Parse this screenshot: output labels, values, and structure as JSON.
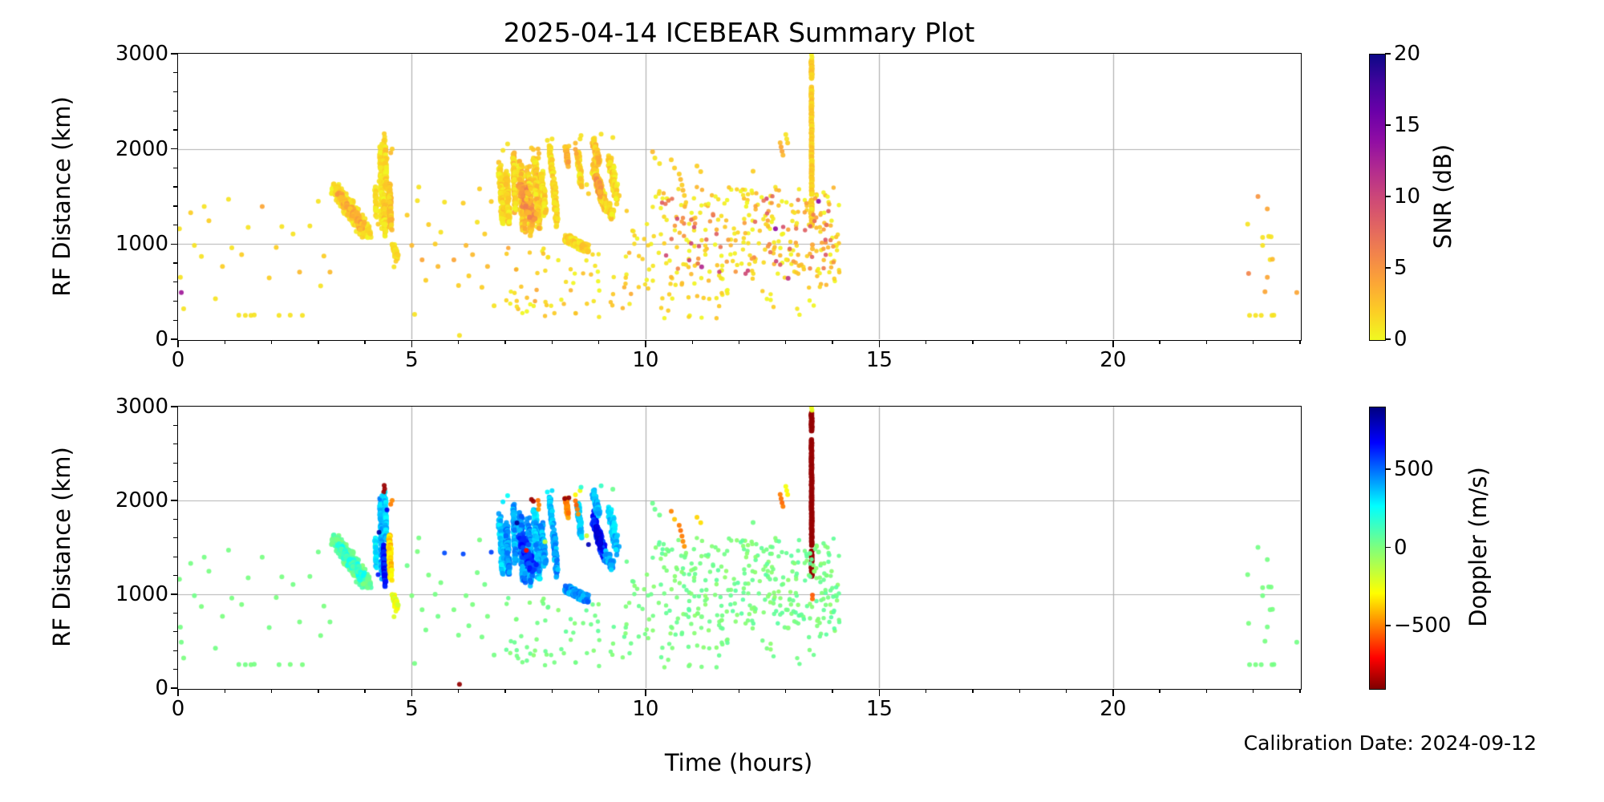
{
  "title": "2025-04-14 ICEBEAR Summary Plot",
  "xlabel": "Time (hours)",
  "ylabel": "RF Distance (km)",
  "calibration_note": "Calibration Date: 2024-09-12",
  "colors": {
    "grid": "#b0b0b0",
    "spine": "#000000",
    "background": "#ffffff"
  },
  "axes": {
    "xlim": [
      0,
      24
    ],
    "ylim": [
      0,
      3000
    ],
    "xticks": [
      0,
      5,
      10,
      15,
      20
    ],
    "xtick_labels": [
      "0",
      "5",
      "10",
      "15",
      "20"
    ],
    "xminor_step": 1,
    "yticks": [
      0,
      1000,
      2000,
      3000
    ],
    "ytick_labels": [
      "0",
      "1000",
      "2000",
      "3000"
    ],
    "yminor_step": 200,
    "grid_x": [
      5,
      10,
      15,
      20
    ],
    "grid_y": [
      1000,
      2000
    ]
  },
  "panels": [
    {
      "id": "snr",
      "colorbar_label": "SNR (dB)",
      "vmin": 0,
      "vmax": 20,
      "cbar_ticks": [
        0,
        5,
        10,
        15,
        20
      ],
      "cbar_tick_labels": [
        "0",
        "5",
        "10",
        "15",
        "20"
      ],
      "cmap": "plasma_r"
    },
    {
      "id": "doppler",
      "colorbar_label": "Doppler (m/s)",
      "vmin": -900,
      "vmax": 900,
      "cbar_ticks": [
        -500,
        0,
        500
      ],
      "cbar_tick_labels": [
        "−500",
        "0",
        "500"
      ],
      "cmap": "jet_r"
    }
  ],
  "chart_data": {
    "type": "scatter",
    "x_units": "hours",
    "y_units": "km",
    "point_format": [
      "time_hours",
      "rf_distance_km",
      "snr_db",
      "doppler_ms"
    ],
    "points": [
      [
        0.03,
        1160,
        1,
        15
      ],
      [
        0.07,
        490,
        13,
        25
      ],
      [
        0.05,
        650,
        1,
        20
      ],
      [
        0.12,
        320,
        1,
        10
      ],
      [
        0.27,
        1330,
        2,
        20
      ],
      [
        0.35,
        985,
        1,
        30
      ],
      [
        0.5,
        870,
        1,
        10
      ],
      [
        0.56,
        1395,
        1,
        20
      ],
      [
        0.66,
        1245,
        2,
        15
      ],
      [
        0.8,
        425,
        1,
        25
      ],
      [
        0.95,
        765,
        2,
        10
      ],
      [
        1.08,
        1470,
        1,
        20
      ],
      [
        1.15,
        960,
        1,
        15
      ],
      [
        1.3,
        252,
        1,
        20
      ],
      [
        1.36,
        890,
        2,
        10
      ],
      [
        1.44,
        250,
        1,
        25
      ],
      [
        1.5,
        1175,
        1,
        15
      ],
      [
        1.56,
        250,
        1,
        10
      ],
      [
        1.63,
        254,
        1,
        20
      ],
      [
        1.8,
        1395,
        4,
        15
      ],
      [
        1.95,
        645,
        2,
        25
      ],
      [
        2.1,
        965,
        2,
        10
      ],
      [
        2.16,
        250,
        1,
        20
      ],
      [
        2.22,
        1185,
        1,
        15
      ],
      [
        2.4,
        252,
        1,
        10
      ],
      [
        2.46,
        1105,
        1,
        25
      ],
      [
        2.6,
        705,
        3,
        15
      ],
      [
        2.66,
        250,
        1,
        10
      ],
      [
        2.82,
        1190,
        1,
        20
      ],
      [
        3.0,
        1450,
        1,
        30
      ],
      [
        3.05,
        560,
        1,
        15
      ],
      [
        3.12,
        875,
        2,
        10
      ],
      [
        3.25,
        705,
        3,
        20
      ],
      [
        4.41,
        2160,
        2,
        -860
      ],
      [
        4.42,
        2125,
        1.5,
        -860
      ],
      [
        4.4,
        2090,
        2,
        -850
      ],
      [
        4.36,
        2050,
        1,
        330
      ],
      [
        4.3,
        1660,
        1,
        820
      ],
      [
        4.47,
        1900,
        2,
        700
      ],
      [
        4.55,
        1960,
        3,
        -500
      ],
      [
        4.58,
        2000,
        2,
        -480
      ],
      [
        4.28,
        1210,
        2,
        640
      ],
      [
        4.62,
        760,
        1,
        -200
      ],
      [
        4.66,
        820,
        2,
        -250
      ],
      [
        4.9,
        1305,
        2,
        35
      ],
      [
        5.0,
        985,
        3,
        5
      ],
      [
        5.06,
        262,
        1,
        20
      ],
      [
        5.12,
        1455,
        1,
        10
      ],
      [
        5.15,
        1600,
        1,
        20
      ],
      [
        5.22,
        835,
        4,
        15
      ],
      [
        5.3,
        620,
        2,
        25
      ],
      [
        5.36,
        1205,
        2,
        10
      ],
      [
        5.5,
        1000,
        2,
        20
      ],
      [
        5.56,
        765,
        3,
        30
      ],
      [
        5.62,
        1125,
        1,
        15
      ],
      [
        5.7,
        1440,
        1,
        555
      ],
      [
        5.9,
        835,
        4,
        10
      ],
      [
        6.0,
        565,
        2,
        20
      ],
      [
        6.02,
        40,
        1,
        -865
      ],
      [
        6.1,
        1430,
        2,
        560
      ],
      [
        6.16,
        985,
        3,
        15
      ],
      [
        6.22,
        665,
        2,
        25
      ],
      [
        6.3,
        890,
        3,
        10
      ],
      [
        6.4,
        1230,
        1,
        20
      ],
      [
        6.45,
        1580,
        2,
        15
      ],
      [
        6.5,
        545,
        2,
        20
      ],
      [
        6.56,
        1105,
        2,
        30
      ],
      [
        6.62,
        765,
        3,
        10
      ],
      [
        6.7,
        1448,
        2,
        570
      ],
      [
        6.76,
        352,
        1,
        20
      ],
      [
        7.25,
        1760,
        1,
        855
      ],
      [
        7.56,
        2010,
        2,
        -860
      ],
      [
        7.6,
        1992,
        2.5,
        -855
      ],
      [
        7.7,
        2000,
        3,
        -520
      ],
      [
        7.72,
        1952,
        3,
        -490
      ],
      [
        7.71,
        1905,
        2,
        -455
      ],
      [
        7.45,
        1468,
        2,
        -700
      ],
      [
        7.85,
        1560,
        1,
        -160
      ],
      [
        7.9,
        2090,
        1,
        280
      ],
      [
        7.05,
        2052,
        1,
        260
      ],
      [
        6.95,
        1985,
        1,
        300
      ],
      [
        8.0,
        2105,
        1,
        320
      ],
      [
        8.27,
        2020,
        2,
        -860
      ],
      [
        8.36,
        2028,
        2,
        -865
      ],
      [
        8.5,
        2060,
        3,
        -300
      ],
      [
        8.5,
        1995,
        4,
        -520
      ],
      [
        8.52,
        1950,
        4,
        -560
      ],
      [
        8.54,
        1905,
        3,
        -500
      ],
      [
        8.56,
        1855,
        3,
        -470
      ],
      [
        8.6,
        2105,
        1,
        -250
      ],
      [
        8.62,
        2140,
        1,
        180
      ],
      [
        8.78,
        1530,
        2,
        800
      ],
      [
        8.74,
        1625,
        1,
        -180
      ],
      [
        9.3,
        2120,
        1,
        40
      ],
      [
        9.05,
        2155,
        1,
        150
      ],
      [
        10.55,
        1885,
        2,
        -490
      ],
      [
        10.62,
        1800,
        2,
        -380
      ],
      [
        10.72,
        1735,
        2,
        -500
      ],
      [
        10.75,
        1680,
        3,
        -520
      ],
      [
        10.78,
        1620,
        2,
        -500
      ],
      [
        10.8,
        1565,
        3,
        -480
      ],
      [
        10.83,
        1510,
        2,
        -460
      ],
      [
        11.1,
        1820,
        2,
        -360
      ],
      [
        11.18,
        1762,
        2,
        -340
      ],
      [
        11.2,
        760,
        12,
        15
      ],
      [
        12.78,
        1160,
        14,
        30
      ],
      [
        13.05,
        640,
        11,
        -10
      ],
      [
        13.7,
        1450,
        14,
        20
      ],
      [
        10.15,
        1970,
        3,
        40
      ],
      [
        12.3,
        1765,
        2,
        30
      ],
      [
        10.2,
        1905,
        1,
        45
      ],
      [
        10.3,
        1845,
        1,
        35
      ],
      [
        12.88,
        2065,
        3,
        -500
      ],
      [
        12.9,
        2020,
        4,
        -520
      ],
      [
        12.92,
        1975,
        4,
        -540
      ],
      [
        12.94,
        1935,
        3,
        -500
      ],
      [
        13.0,
        2150,
        1,
        -260
      ],
      [
        13.02,
        2105,
        1,
        -280
      ],
      [
        13.04,
        2062,
        2,
        -300
      ],
      [
        13.55,
        2992,
        0.5,
        -240
      ],
      [
        13.56,
        2962,
        0.5,
        -230
      ],
      [
        13.57,
        992,
        4,
        -560
      ],
      [
        13.57,
        950,
        3,
        -540
      ],
      [
        23.1,
        1500,
        5,
        25
      ],
      [
        23.3,
        1370,
        4,
        20
      ],
      [
        22.88,
        1210,
        1,
        15
      ],
      [
        23.2,
        1070,
        1,
        10
      ],
      [
        23.33,
        1080,
        1,
        20
      ],
      [
        23.38,
        1076,
        1,
        15
      ],
      [
        23.2,
        985,
        1,
        25
      ],
      [
        23.36,
        836,
        1,
        20
      ],
      [
        23.41,
        840,
        3,
        15
      ],
      [
        22.9,
        690,
        6,
        10
      ],
      [
        23.3,
        652,
        4,
        20
      ],
      [
        23.25,
        500,
        4,
        15
      ],
      [
        23.93,
        490,
        4,
        25
      ],
      [
        22.92,
        250,
        1,
        20
      ],
      [
        23.05,
        250,
        1,
        15
      ],
      [
        23.17,
        250,
        1,
        20
      ],
      [
        23.4,
        250,
        1,
        10
      ],
      [
        23.44,
        252,
        1,
        25
      ]
    ],
    "streaks": {
      "format": [
        "t0",
        "d0",
        "t1",
        "d1",
        "n",
        "t_jitter",
        "d_jitter",
        "snr_min",
        "snr_max",
        "dop_min",
        "dop_max"
      ],
      "items": [
        [
          3.35,
          1580,
          4.05,
          1120,
          240,
          0.1,
          80,
          0,
          2,
          -10,
          120
        ],
        [
          3.45,
          1500,
          3.95,
          1180,
          80,
          0.05,
          50,
          2,
          5,
          80,
          260
        ],
        [
          4.22,
          1560,
          4.24,
          1320,
          30,
          0.015,
          40,
          0,
          2,
          200,
          380
        ],
        [
          4.33,
          1980,
          4.36,
          1200,
          90,
          0.02,
          60,
          0,
          2,
          300,
          480
        ],
        [
          4.42,
          2060,
          4.45,
          1560,
          70,
          0.02,
          50,
          0,
          3,
          260,
          440
        ],
        [
          4.4,
          1500,
          4.43,
          1130,
          85,
          0.02,
          55,
          0,
          3,
          560,
          760
        ],
        [
          4.52,
          1610,
          4.55,
          1190,
          90,
          0.025,
          55,
          1,
          4,
          -440,
          -260
        ],
        [
          4.6,
          990,
          4.68,
          860,
          40,
          0.03,
          35,
          0,
          2,
          -340,
          -160
        ],
        [
          6.88,
          1800,
          6.95,
          1260,
          120,
          0.03,
          65,
          0,
          3,
          260,
          440
        ],
        [
          7.02,
          1750,
          7.08,
          1230,
          100,
          0.03,
          60,
          0,
          3,
          340,
          540
        ],
        [
          7.18,
          1900,
          7.22,
          1360,
          95,
          0.025,
          65,
          0,
          4,
          300,
          500
        ],
        [
          7.32,
          1820,
          7.4,
          1160,
          140,
          0.04,
          75,
          0,
          4,
          340,
          600
        ],
        [
          7.48,
          1750,
          7.56,
          1130,
          130,
          0.04,
          75,
          0,
          4,
          300,
          550
        ],
        [
          7.62,
          1850,
          7.72,
          1210,
          140,
          0.045,
          75,
          0,
          4,
          260,
          500
        ],
        [
          7.35,
          1600,
          7.58,
          1260,
          60,
          0.09,
          65,
          3,
          7,
          520,
          700
        ],
        [
          7.78,
          1700,
          7.85,
          1310,
          75,
          0.03,
          65,
          0,
          3,
          300,
          500
        ],
        [
          7.95,
          2020,
          8.0,
          1760,
          45,
          0.02,
          45,
          0,
          3,
          300,
          450
        ],
        [
          8.03,
          1700,
          8.1,
          1210,
          80,
          0.03,
          60,
          0,
          3,
          320,
          520
        ],
        [
          8.3,
          2000,
          8.34,
          1840,
          35,
          0.015,
          40,
          2,
          5,
          -540,
          -420
        ],
        [
          8.55,
          1950,
          8.62,
          1640,
          60,
          0.025,
          55,
          0,
          3,
          260,
          430
        ],
        [
          8.3,
          1060,
          8.74,
          955,
          150,
          0.07,
          38,
          0,
          3,
          340,
          540
        ],
        [
          8.88,
          1820,
          9.12,
          1420,
          130,
          0.04,
          75,
          0,
          4,
          520,
          720
        ],
        [
          8.88,
          2080,
          9.0,
          1850,
          55,
          0.03,
          55,
          1,
          4,
          300,
          480
        ],
        [
          8.95,
          1700,
          9.05,
          1520,
          30,
          0.03,
          45,
          3,
          6,
          700,
          820
        ],
        [
          9.15,
          1420,
          9.3,
          1300,
          55,
          0.04,
          50,
          0,
          3,
          300,
          480
        ],
        [
          9.22,
          1900,
          9.4,
          1480,
          80,
          0.04,
          70,
          0,
          3,
          280,
          450
        ],
        [
          13.55,
          2930,
          13.555,
          2740,
          40,
          0.006,
          8,
          1,
          3,
          -872,
          -858
        ],
        [
          13.55,
          2650,
          13.555,
          1520,
          150,
          0.006,
          8,
          1,
          3,
          -872,
          -855
        ],
        [
          13.552,
          1465,
          13.556,
          1195,
          45,
          0.006,
          8,
          1,
          3,
          -870,
          -856
        ]
      ]
    },
    "clouds": {
      "format": [
        "t0",
        "t1",
        "d0",
        "d1",
        "n",
        "snr_min",
        "snr_max",
        "dop_min",
        "dop_max"
      ],
      "items": [
        [
          10.1,
          14.15,
          560,
          1600,
          250,
          0,
          3.5,
          -35,
          85
        ],
        [
          10.35,
          14.05,
          680,
          1520,
          80,
          4,
          10.5,
          -30,
          75
        ],
        [
          10.3,
          14.0,
          210,
          560,
          32,
          0,
          3,
          -25,
          60
        ],
        [
          7.0,
          9.85,
          230,
          960,
          65,
          0,
          4,
          -25,
          70
        ],
        [
          9.5,
          10.1,
          500,
          1350,
          18,
          0,
          3,
          -20,
          60
        ]
      ]
    },
    "colormaps": {
      "plasma": [
        [
          0,
          "#0d0887"
        ],
        [
          0.1,
          "#41049d"
        ],
        [
          0.2,
          "#6a00a8"
        ],
        [
          0.3,
          "#8f0da4"
        ],
        [
          0.4,
          "#b12a90"
        ],
        [
          0.5,
          "#cc4778"
        ],
        [
          0.6,
          "#e16462"
        ],
        [
          0.7,
          "#f2844b"
        ],
        [
          0.8,
          "#fca636"
        ],
        [
          0.9,
          "#fcce25"
        ],
        [
          1,
          "#f0f921"
        ]
      ],
      "jet": [
        [
          0,
          "#000080"
        ],
        [
          0.125,
          "#0000ff"
        ],
        [
          0.35,
          "#00ffff"
        ],
        [
          0.5,
          "#80ff7b"
        ],
        [
          0.66,
          "#ffff00"
        ],
        [
          0.89,
          "#ff0000"
        ],
        [
          1,
          "#800000"
        ]
      ]
    }
  }
}
